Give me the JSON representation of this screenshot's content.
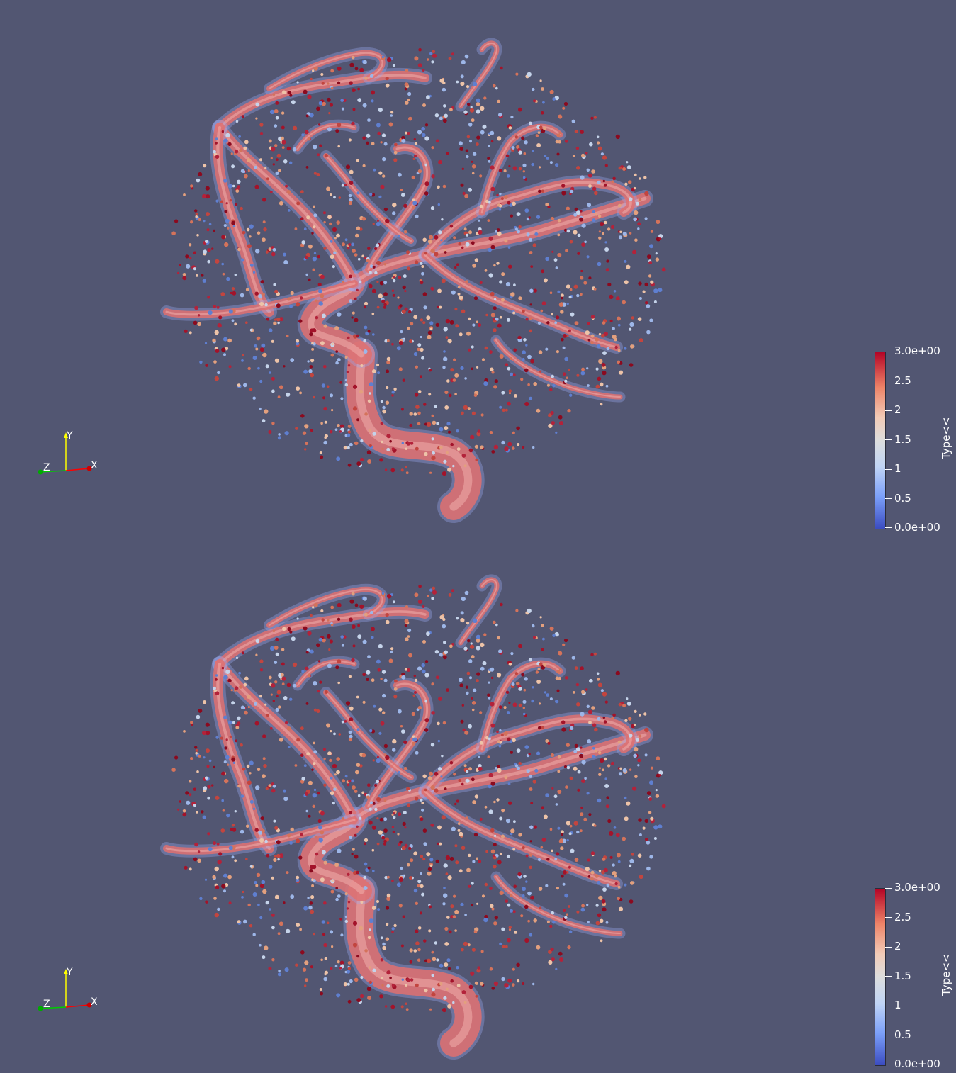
{
  "views": [
    {
      "id": "top",
      "axes": {
        "x_label": "X",
        "y_label": "Y",
        "z_label": "Z"
      },
      "color_legend": {
        "title": "Type<<",
        "labels": [
          "3.0e+00",
          "2.5",
          "2",
          "1.5",
          "1",
          "0.5",
          "0.0e+00"
        ],
        "range": [
          0,
          3
        ],
        "colormap": "cool-to-warm",
        "colors": {
          "low": "#3b4cc0",
          "mid": "#dddddd",
          "high": "#b40426"
        }
      }
    },
    {
      "id": "bottom",
      "axes": {
        "x_label": "X",
        "y_label": "Y",
        "z_label": "Z"
      },
      "color_legend": {
        "title": "Type<<",
        "labels": [
          "3.0e+00",
          "2.5",
          "2",
          "1.5",
          "1",
          "0.5",
          "0.0e+00"
        ],
        "range": [
          0,
          3
        ],
        "colormap": "cool-to-warm",
        "colors": {
          "low": "#3b4cc0",
          "mid": "#dddddd",
          "high": "#b40426"
        }
      }
    }
  ],
  "background_color": "#525672",
  "axis_colors": {
    "x": "#ff0000",
    "y": "#ffff00",
    "z": "#00cc00"
  }
}
